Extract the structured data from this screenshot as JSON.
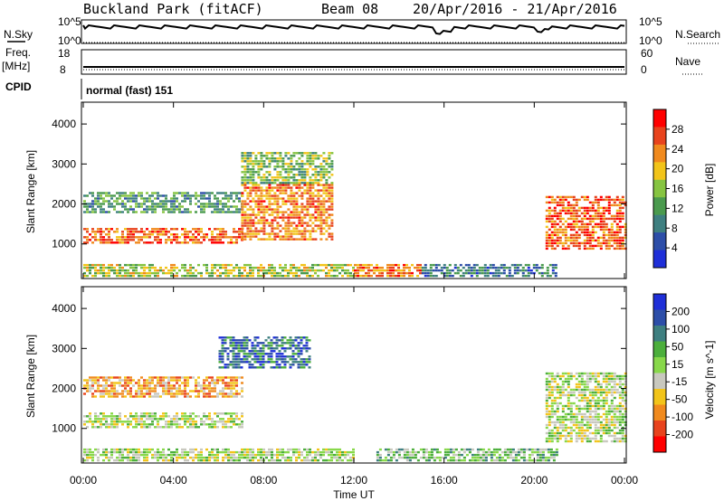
{
  "header": {
    "station": "Buckland Park (fitACF)",
    "beam": "Beam 08",
    "date_range": "20/Apr/2016 - 21/Apr/2016"
  },
  "status_panels": {
    "nsky_label": "N.Sky",
    "nsearch_label": "N.Search",
    "noise_ticks": [
      "10^5",
      "10^0"
    ],
    "freq_label": "Freq.",
    "freq_unit": "[MHz]",
    "freq_ticks": [
      "18",
      "8"
    ],
    "nave_label": "Nave",
    "nave_ticks": [
      "60",
      "0"
    ],
    "cpid_label": "CPID",
    "cpid_text": "normal (fast) 151"
  },
  "colors": {
    "power": [
      "#1f2fd8",
      "#2d4ea8",
      "#3e7f80",
      "#4a9a4e",
      "#86c441",
      "#f2c41a",
      "#f08a1e",
      "#e8431d",
      "#ff0000"
    ],
    "velocity": [
      "#1f2fd8",
      "#2d4ea8",
      "#3e7f80",
      "#4caf3c",
      "#88d84a",
      "#c8c8be",
      "#f2c41a",
      "#f08a1e",
      "#e8431d",
      "#ff0000"
    ]
  },
  "chart_data": [
    {
      "type": "heatmap",
      "title": "Power",
      "ylabel": "Slant Range [km]",
      "x_ticks": [
        "00:00",
        "04:00",
        "08:00",
        "12:00",
        "16:00",
        "20:00",
        "00:00"
      ],
      "y_ticks": [
        "1000",
        "2000",
        "3000",
        "4000"
      ],
      "xlim_hours": [
        0,
        24
      ],
      "ylim_km": [
        180,
        4500
      ],
      "colorbar": {
        "label": "Power [dB]",
        "ticks": [
          "4",
          "8",
          "12",
          "16",
          "20",
          "24",
          "28"
        ],
        "range": [
          0,
          30
        ]
      },
      "features": [
        {
          "range_km": [
            1000,
            1400
          ],
          "hours": [
            0,
            7
          ],
          "value": 24
        },
        {
          "range_km": [
            1800,
            2300
          ],
          "hours": [
            0,
            7
          ],
          "value": 11
        },
        {
          "range_km": [
            1100,
            2500
          ],
          "hours": [
            7,
            11
          ],
          "value": 22
        },
        {
          "range_km": [
            2500,
            3300
          ],
          "hours": [
            7,
            11
          ],
          "value": 14
        },
        {
          "range_km": [
            200,
            500
          ],
          "hours": [
            0,
            12
          ],
          "value": 16
        },
        {
          "range_km": [
            200,
            500
          ],
          "hours": [
            12,
            15
          ],
          "value": 23
        },
        {
          "range_km": [
            200,
            500
          ],
          "hours": [
            15,
            21
          ],
          "value": 8
        },
        {
          "range_km": [
            900,
            2200
          ],
          "hours": [
            20.5,
            24
          ],
          "value": 24
        }
      ]
    },
    {
      "type": "heatmap",
      "title": "Velocity",
      "ylabel": "Slant Range [km]",
      "xlabel": "Time UT",
      "x_ticks": [
        "00:00",
        "04:00",
        "08:00",
        "12:00",
        "16:00",
        "20:00",
        "00:00"
      ],
      "y_ticks": [
        "1000",
        "2000",
        "3000",
        "4000"
      ],
      "xlim_hours": [
        0,
        24
      ],
      "ylim_km": [
        180,
        4500
      ],
      "colorbar": {
        "label": "Velocity [m s^-1]",
        "ticks": [
          "200",
          "100",
          "50",
          "15",
          "-15",
          "-50",
          "-100",
          "-200"
        ],
        "range": [
          -250,
          250
        ]
      },
      "features": [
        {
          "range_km": [
            1000,
            1400
          ],
          "hours": [
            0,
            7
          ],
          "value": 0
        },
        {
          "range_km": [
            1800,
            2300
          ],
          "hours": [
            0,
            7
          ],
          "value": -100
        },
        {
          "range_km": [
            2500,
            3300
          ],
          "hours": [
            6,
            10
          ],
          "value": 150
        },
        {
          "range_km": [
            200,
            500
          ],
          "hours": [
            0,
            12
          ],
          "value": 0
        },
        {
          "range_km": [
            200,
            500
          ],
          "hours": [
            13,
            21
          ],
          "value": 40
        },
        {
          "range_km": [
            700,
            2400
          ],
          "hours": [
            20.5,
            24
          ],
          "value": 0
        }
      ]
    }
  ]
}
